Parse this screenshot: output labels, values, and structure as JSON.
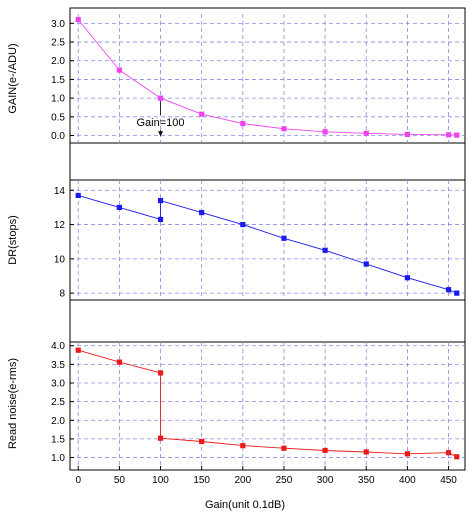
{
  "chart_data": [
    {
      "type": "line",
      "id": "gain",
      "ylabel": "GAIN(e-/ADU)",
      "xlim": [
        -10,
        470
      ],
      "ylim": [
        -0.2,
        3.25
      ],
      "yticks": [
        0.0,
        0.5,
        1.0,
        1.5,
        2.0,
        2.5,
        3.0
      ],
      "ytick_labels": [
        "0.0",
        "0.5",
        "1.0",
        "1.5",
        "2.0",
        "2.5",
        "3.0"
      ],
      "grid": true,
      "color": "#ee44ee",
      "series": [
        {
          "x": [
            0,
            50,
            100,
            150,
            200,
            250,
            300,
            350,
            400,
            450,
            460
          ],
          "y": [
            3.1,
            1.75,
            1.0,
            0.57,
            0.32,
            0.18,
            0.1,
            0.06,
            0.03,
            0.02,
            0.01
          ]
        }
      ],
      "annotation": {
        "text": "Gain=100",
        "x": 100,
        "y": 1.0,
        "text_y": 0.25,
        "arrow_to_y": -0.02
      }
    },
    {
      "type": "line",
      "id": "dr",
      "ylabel": "DR(stops)",
      "xlim": [
        -10,
        470
      ],
      "ylim": [
        7.6,
        14.6
      ],
      "yticks": [
        8,
        10,
        12,
        14
      ],
      "ytick_labels": [
        "8",
        "10",
        "12",
        "14"
      ],
      "grid": true,
      "color": "#1a1aee",
      "series": [
        {
          "x": [
            0,
            50,
            100,
            100,
            150,
            200,
            250,
            300,
            350,
            400,
            450,
            460
          ],
          "y": [
            13.7,
            13.0,
            12.3,
            13.4,
            12.7,
            12.0,
            11.2,
            10.5,
            9.7,
            8.9,
            8.2,
            8.0
          ]
        }
      ]
    },
    {
      "type": "line",
      "id": "noise",
      "ylabel": "Read noise(e-rms)",
      "xlabel": "Gain(unit 0.1dB)",
      "xlim": [
        -10,
        470
      ],
      "ylim": [
        0.8,
        4.1
      ],
      "yticks": [
        1.0,
        1.5,
        2.0,
        2.5,
        3.0,
        3.5,
        4.0
      ],
      "ytick_labels": [
        "1.0",
        "1.5",
        "2.0",
        "2.5",
        "3.0",
        "3.5",
        "4.0"
      ],
      "xticks": [
        0,
        50,
        100,
        150,
        200,
        250,
        300,
        350,
        400,
        450
      ],
      "xtick_labels": [
        "0",
        "50",
        "100",
        "150",
        "200",
        "250",
        "300",
        "350",
        "400",
        "450"
      ],
      "grid": true,
      "color": "#ee1a1a",
      "series": [
        {
          "x": [
            0,
            50,
            100,
            100,
            150,
            200,
            250,
            300,
            350,
            400,
            450,
            460
          ],
          "y": [
            3.88,
            3.56,
            3.27,
            1.52,
            1.43,
            1.32,
            1.25,
            1.19,
            1.15,
            1.1,
            1.13,
            1.02
          ]
        }
      ]
    }
  ]
}
